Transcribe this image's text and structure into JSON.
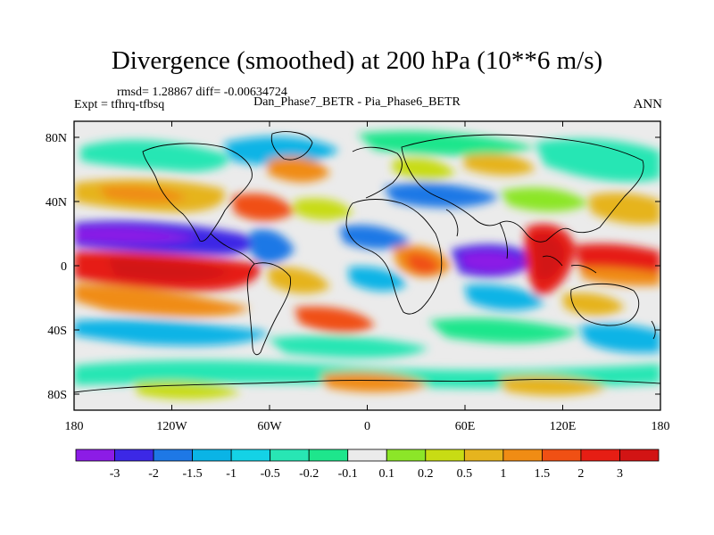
{
  "title": "Divergence (smoothed) at 200 hPa (10**6 m/s)",
  "stats": "rmsd= 1.28867 diff= -0.00634724",
  "expt": "Expt = tfhrq-tfbsq",
  "difference_name": "Dan_Phase7_BETR - Pia_Phase6_BETR",
  "season": "ANN",
  "y_axis": {
    "ticks": [
      80,
      40,
      0,
      -40,
      -80
    ],
    "labels": [
      "80N",
      "40N",
      "0",
      "40S",
      "80S"
    ]
  },
  "x_axis": {
    "ticks": [
      -180,
      -120,
      -60,
      0,
      60,
      120,
      180
    ],
    "labels": [
      "180",
      "120W",
      "60W",
      "0",
      "60E",
      "120E",
      "180"
    ]
  },
  "colorbar": {
    "labels": [
      "-3",
      "-2",
      "-1.5",
      "-1",
      "-0.5",
      "-0.2",
      "-0.1",
      "0.1",
      "0.2",
      "0.5",
      "1",
      "1.5",
      "2",
      "3"
    ],
    "colors": [
      "#8c1ce6",
      "#3c28e6",
      "#1e78e6",
      "#0ab4e6",
      "#14d2e6",
      "#28e6b4",
      "#1ee68c",
      "#ebebeb",
      "#8ce628",
      "#c8dc14",
      "#e6b41e",
      "#f08c14",
      "#f05014",
      "#e61e14",
      "#d21414"
    ]
  }
}
